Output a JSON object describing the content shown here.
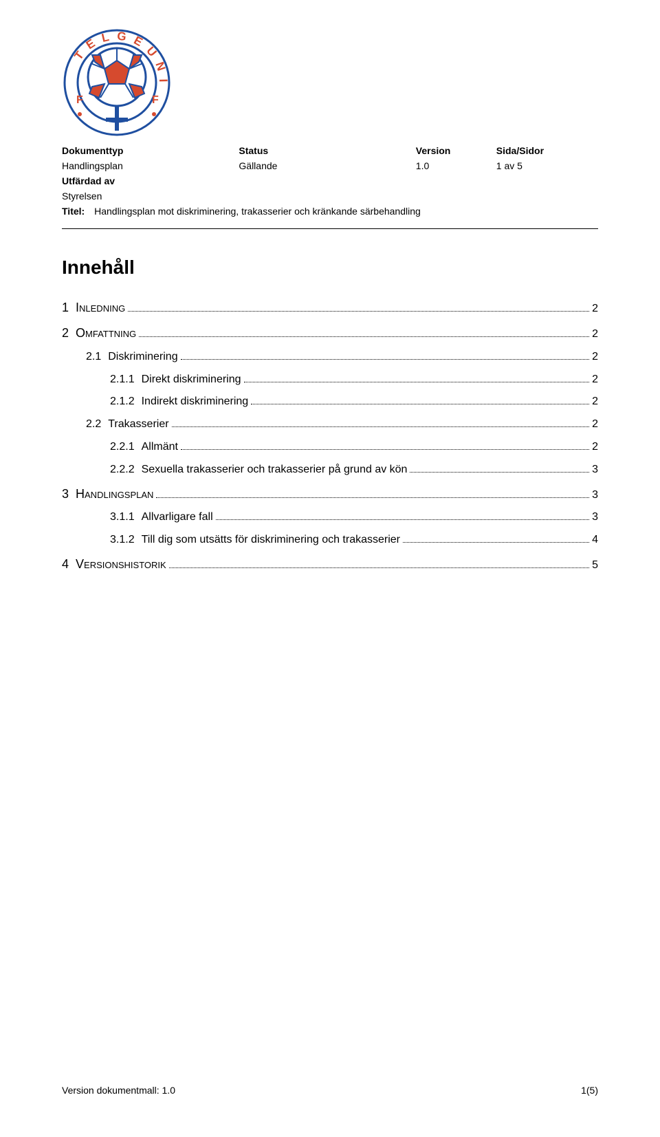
{
  "logo": {
    "outer_text_top": "TELGE UNITED",
    "outer_text_side": "FF",
    "ring_color": "#1f4fa0",
    "text_color": "#d64a2e",
    "ball_panel_color": "#d64a2e",
    "ball_outline": "#1f4fa0",
    "ball_bg": "#ffffff",
    "symbol_color": "#1f4fa0"
  },
  "meta": {
    "headers": {
      "a": "Dokumenttyp",
      "b": "Status",
      "c": "Version",
      "d": "Sida/Sidor"
    },
    "row1": {
      "a": "Handlingsplan",
      "b": "Gällande",
      "c": "1.0",
      "d": "1 av 5"
    },
    "row2": {
      "a": "Utfärdad av",
      "b": "",
      "c": "",
      "d": ""
    },
    "row3": {
      "a": "Styrelsen",
      "b": "",
      "c": "",
      "d": ""
    },
    "title_label": "Titel:",
    "title_value": "Handlingsplan mot diskriminering, trakasserier och kränkande särbehandling"
  },
  "toc_title": "Innehåll",
  "toc": [
    {
      "level": 1,
      "num": "1",
      "text": "Inledning",
      "page": "2"
    },
    {
      "level": 1,
      "num": "2",
      "text": "Omfattning",
      "page": "2"
    },
    {
      "level": 2,
      "num": "2.1",
      "text": "Diskriminering",
      "page": "2"
    },
    {
      "level": 3,
      "num": "2.1.1",
      "text": "Direkt diskriminering",
      "page": "2"
    },
    {
      "level": 3,
      "num": "2.1.2",
      "text": "Indirekt diskriminering",
      "page": "2"
    },
    {
      "level": 2,
      "num": "2.2",
      "text": "Trakasserier",
      "page": "2"
    },
    {
      "level": 3,
      "num": "2.2.1",
      "text": "Allmänt",
      "page": "2"
    },
    {
      "level": 3,
      "num": "2.2.2",
      "text": "Sexuella trakasserier och trakasserier på grund av kön",
      "page": "3"
    },
    {
      "level": 1,
      "num": "3",
      "text": "Handlingsplan",
      "page": "3"
    },
    {
      "level": 3,
      "num": "3.1.1",
      "text": "Allvarligare fall",
      "page": "3"
    },
    {
      "level": 3,
      "num": "3.1.2",
      "text": "Till dig som utsätts för diskriminering och trakasserier",
      "page": "4"
    },
    {
      "level": 1,
      "num": "4",
      "text": "Versionshistorik",
      "page": "5"
    }
  ],
  "footer": {
    "left": "Version dokumentmall: 1.0",
    "right": "1(5)"
  }
}
